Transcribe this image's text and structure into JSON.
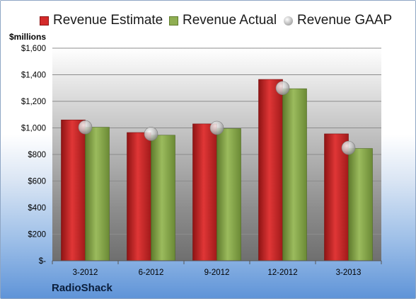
{
  "units_label": "$millions",
  "company": "RadioShack",
  "colors": {
    "estimate": "#d42a2a",
    "actual": "#8fae52",
    "gaap": "#b9b9b9"
  },
  "chart_data": {
    "type": "bar",
    "categories": [
      "3-2012",
      "6-2012",
      "9-2012",
      "12-2012",
      "3-2013"
    ],
    "series": [
      {
        "name": "Revenue Estimate",
        "values": [
          1060,
          965,
          1030,
          1365,
          955
        ]
      },
      {
        "name": "Revenue Actual",
        "values": [
          1005,
          945,
          995,
          1295,
          845
        ]
      },
      {
        "name": "Revenue GAAP",
        "type": "marker",
        "values": [
          1005,
          955,
          1000,
          1300,
          850
        ]
      }
    ],
    "title": "",
    "xlabel": "",
    "ylabel": "$millions",
    "ylim": [
      0,
      1600
    ],
    "yticks": [
      0,
      200,
      400,
      600,
      800,
      1000,
      1200,
      1400,
      1600
    ],
    "ytick_labels": [
      "$-",
      "$200",
      "$400",
      "$600",
      "$800",
      "$1,000",
      "$1,200",
      "$1,400",
      "$1,600"
    ],
    "grid": true,
    "legend_position": "top"
  }
}
